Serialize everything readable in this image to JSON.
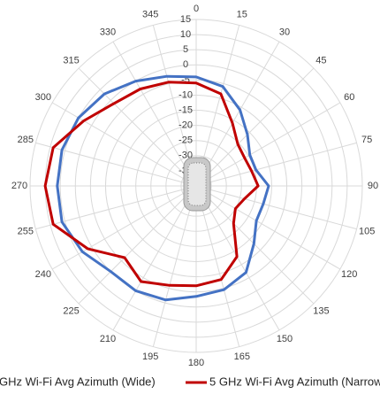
{
  "chart_data": {
    "type": "radar",
    "angles": [
      0,
      15,
      30,
      45,
      60,
      75,
      90,
      105,
      120,
      135,
      150,
      165,
      180,
      195,
      210,
      225,
      240,
      255,
      270,
      285,
      300,
      315,
      330,
      345
    ],
    "rlim": [
      -40,
      15
    ],
    "rticks": [
      -35,
      -30,
      -25,
      -20,
      -15,
      -10,
      -5,
      0,
      5,
      10,
      15
    ],
    "grid": true,
    "legend": "bottom",
    "series": [
      {
        "name": "GHz Wi-Fi Avg Azimuth (Wide)",
        "color": "#4472c4",
        "values": [
          -4,
          -6,
          -11,
          -16,
          -19.5,
          -19.5,
          -16,
          -17,
          -17,
          -13,
          -7,
          -4.5,
          -3.5,
          -1,
          0,
          0,
          3.5,
          6,
          6,
          6,
          5,
          3,
          0,
          -2.5
        ]
      },
      {
        "name": "5 GHz Wi-Fi Avg Azimuth (Narrow",
        "color": "#c00000",
        "values": [
          -6,
          -8.5,
          -16,
          -20.5,
          -21.5,
          -21,
          -19.5,
          -23.5,
          -25,
          -22.5,
          -13,
          -8,
          -7,
          -6,
          -3.5,
          -6.5,
          1.5,
          9,
          10,
          9,
          3,
          -1.5,
          -3,
          -4.5
        ]
      }
    ]
  }
}
